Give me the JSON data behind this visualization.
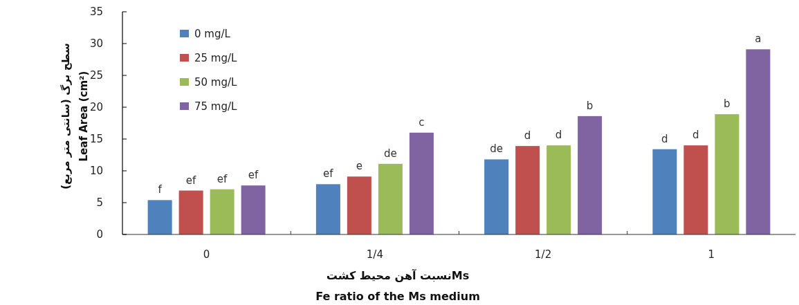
{
  "chart_data": {
    "type": "bar",
    "xlabel": "نسبت آهن محیط کشتMs\nFe ratio of the Ms medium",
    "ylabel": "سطح برگ (سانتی متر مربع)\nLeaf Area (cm²)",
    "categories": [
      "0",
      "1/4",
      "1/2",
      "1"
    ],
    "series": [
      {
        "name": "0  mg/L",
        "color": "#4f81bd",
        "values": [
          5.4,
          7.9,
          11.8,
          13.4
        ]
      },
      {
        "name": "25 mg/L",
        "color": "#c0504d",
        "values": [
          6.9,
          9.1,
          13.9,
          14.0
        ]
      },
      {
        "name": "50 mg/L",
        "color": "#9bbb59",
        "values": [
          7.1,
          11.1,
          14.0,
          18.9
        ]
      },
      {
        "name": "75 mg/L",
        "color": "#8064a2",
        "values": [
          7.7,
          16.0,
          18.6,
          29.1
        ]
      }
    ],
    "ylim": [
      0,
      35
    ],
    "yticks": [
      0,
      5,
      10,
      15,
      20,
      25,
      30,
      35
    ],
    "grid": false,
    "legend": "top left",
    "annotations": [
      "f",
      "ef",
      "ef",
      "ef",
      "ef",
      "e",
      "de",
      "c",
      "de",
      "d",
      "d",
      "b",
      "d",
      "d",
      "b",
      "a"
    ]
  }
}
